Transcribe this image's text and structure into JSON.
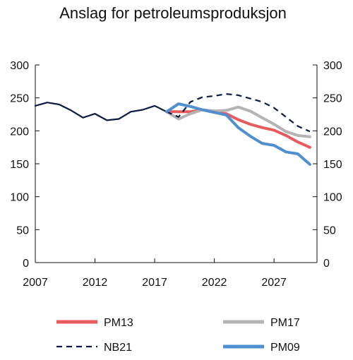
{
  "chart_data": {
    "type": "line",
    "title": "Anslag for petroleumsproduksjon",
    "xlabel": "",
    "ylabel": "",
    "xlim": [
      2007,
      2030.6
    ],
    "ylim": [
      0,
      300
    ],
    "y_ticks": [
      "0",
      "50",
      "100",
      "150",
      "200",
      "250",
      "300"
    ],
    "y_tick_values": [
      0,
      50,
      100,
      150,
      200,
      250,
      300
    ],
    "x_ticks": [
      "2007",
      "2012",
      "2017",
      "2022",
      "2027"
    ],
    "x_tick_values": [
      2007,
      2012,
      2017,
      2022,
      2027
    ],
    "right_axis": true,
    "grid": false,
    "legend_position": "bottom",
    "historical": {
      "color": "#0d1a45",
      "x": [
        2007,
        2008,
        2009,
        2010,
        2011,
        2012,
        2013,
        2014,
        2015,
        2016,
        2017,
        2018
      ],
      "values": [
        238,
        243,
        240,
        231,
        220,
        226,
        216,
        218,
        229,
        232,
        238,
        229
      ]
    },
    "series": [
      {
        "name": "PM13",
        "color": "#e85a5e",
        "dash": "",
        "width": 4,
        "x": [
          2018,
          2019,
          2020,
          2021,
          2022,
          2023,
          2024,
          2025,
          2026,
          2027,
          2028,
          2029,
          2030
        ],
        "values": [
          229,
          229,
          229,
          232,
          228,
          226,
          217,
          210,
          205,
          201,
          193,
          183,
          175
        ]
      },
      {
        "name": "PM17",
        "color": "#b4b4b4",
        "dash": "",
        "width": 4,
        "x": [
          2018,
          2019,
          2020,
          2021,
          2022,
          2023,
          2024,
          2025,
          2026,
          2027,
          2028,
          2029,
          2030
        ],
        "values": [
          229,
          218,
          226,
          232,
          230,
          231,
          236,
          230,
          220,
          210,
          199,
          193,
          191
        ]
      },
      {
        "name": "NB21",
        "color": "#0d1a45",
        "dash": "8,6",
        "width": 2.2,
        "x": [
          2018,
          2019,
          2020,
          2021,
          2022,
          2023,
          2024,
          2025,
          2026,
          2027,
          2028,
          2029,
          2030
        ],
        "values": [
          229,
          221,
          244,
          251,
          253,
          256,
          254,
          249,
          244,
          235,
          221,
          207,
          199
        ]
      },
      {
        "name": "PM09",
        "color": "#4f8fd0",
        "dash": "",
        "width": 4,
        "x": [
          2018,
          2019,
          2020,
          2021,
          2022,
          2023,
          2024,
          2025,
          2026,
          2027,
          2028,
          2029,
          2030
        ],
        "values": [
          229,
          241,
          237,
          232,
          228,
          224,
          205,
          192,
          181,
          178,
          168,
          165,
          149
        ]
      }
    ]
  }
}
